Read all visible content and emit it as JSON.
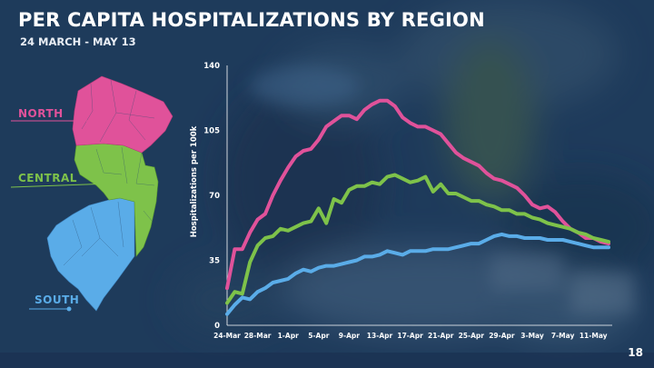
{
  "slide": {
    "title": "PER CAPITA HOSPITALIZATIONS BY REGION",
    "subtitle": "24 MARCH - MAY 13",
    "page_number": "18"
  },
  "regions": {
    "north": {
      "label": "NORTH",
      "color": "#e0529a"
    },
    "central": {
      "label": "CENTRAL",
      "color": "#7ec24a"
    },
    "south": {
      "label": "SOUTH",
      "color": "#5aace8"
    }
  },
  "chart_data": {
    "type": "line",
    "title": "PER CAPITA HOSPITALIZATIONS BY REGION",
    "ylabel": "Hospitalizations per 100k",
    "xlabel": "",
    "ylim": [
      0,
      140
    ],
    "yticks": [
      0,
      35,
      70,
      105,
      140
    ],
    "x_start_index": 0,
    "x_end_index": 50,
    "xticks": [
      {
        "i": 0,
        "label": "24-Mar"
      },
      {
        "i": 4,
        "label": "28-Mar"
      },
      {
        "i": 8,
        "label": "1-Apr"
      },
      {
        "i": 12,
        "label": "5-Apr"
      },
      {
        "i": 16,
        "label": "9-Apr"
      },
      {
        "i": 20,
        "label": "13-Apr"
      },
      {
        "i": 24,
        "label": "17-Apr"
      },
      {
        "i": 28,
        "label": "21-Apr"
      },
      {
        "i": 32,
        "label": "25-Apr"
      },
      {
        "i": 36,
        "label": "29-Apr"
      },
      {
        "i": 40,
        "label": "3-May"
      },
      {
        "i": 44,
        "label": "7-May"
      },
      {
        "i": 48,
        "label": "11-May"
      }
    ],
    "series": [
      {
        "name": "NORTH",
        "color": "#e0529a",
        "values": [
          20,
          41,
          41,
          50,
          57,
          60,
          70,
          78,
          85,
          91,
          94,
          95,
          100,
          107,
          110,
          113,
          113,
          111,
          116,
          119,
          121,
          121,
          118,
          112,
          109,
          107,
          107,
          105,
          103,
          98,
          93,
          90,
          88,
          86,
          82,
          79,
          78,
          76,
          74,
          70,
          65,
          63,
          64,
          61,
          56,
          52,
          50,
          47,
          47,
          45,
          44
        ]
      },
      {
        "name": "CENTRAL",
        "color": "#7ec24a",
        "values": [
          12,
          18,
          17,
          34,
          43,
          47,
          48,
          52,
          51,
          53,
          55,
          56,
          63,
          55,
          68,
          66,
          73,
          75,
          75,
          77,
          76,
          80,
          81,
          79,
          77,
          78,
          80,
          72,
          76,
          71,
          71,
          69,
          67,
          67,
          65,
          64,
          62,
          62,
          60,
          60,
          58,
          57,
          55,
          54,
          53,
          52,
          50,
          49,
          47,
          46,
          45
        ]
      },
      {
        "name": "SOUTH",
        "color": "#5aace8",
        "values": [
          6,
          11,
          15,
          14,
          18,
          20,
          23,
          24,
          25,
          28,
          30,
          29,
          31,
          32,
          32,
          33,
          34,
          35,
          37,
          37,
          38,
          40,
          39,
          38,
          40,
          40,
          40,
          41,
          41,
          41,
          42,
          43,
          44,
          44,
          46,
          48,
          49,
          48,
          48,
          47,
          47,
          47,
          46,
          46,
          46,
          45,
          44,
          43,
          42,
          42,
          42
        ]
      }
    ]
  }
}
